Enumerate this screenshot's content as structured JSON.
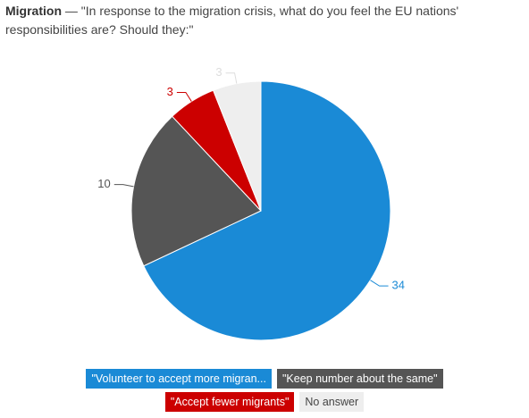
{
  "chart_data": {
    "type": "pie",
    "title": "Migration",
    "subtitle": "— \"In response to the migration crisis, what do you feel the EU nations' responsibilities are? Should they:\"",
    "categories": [
      "\"Volunteer to accept more migran...",
      "\"Keep number about the same\"",
      "\"Accept fewer migrants\"",
      "No answer"
    ],
    "values": [
      34,
      10,
      3,
      3
    ],
    "colors": [
      "#1a8ad6",
      "#555555",
      "#cc0000",
      "#eeeeee"
    ],
    "label_colors": [
      "#1a8ad6",
      "#555555",
      "#cc0000",
      "#dddddd"
    ],
    "legend_text_colors": [
      "#ffffff",
      "#ffffff",
      "#ffffff",
      "#444444"
    ]
  }
}
